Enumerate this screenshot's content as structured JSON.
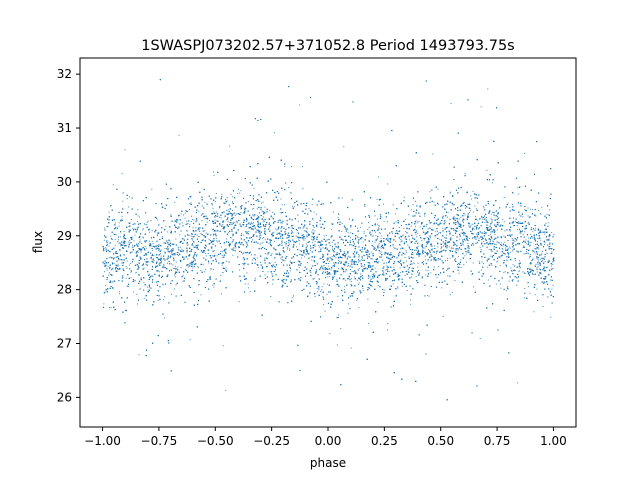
{
  "chart_data": {
    "type": "scatter",
    "title": "1SWASPJ073202.57+371052.8 Period 1493793.75s",
    "xlabel": "phase",
    "ylabel": "flux",
    "xlim": [
      -1.1,
      1.1
    ],
    "ylim": [
      25.45,
      32.3
    ],
    "xticks": [
      -1.0,
      -0.75,
      -0.5,
      -0.25,
      0.0,
      0.25,
      0.5,
      0.75,
      1.0
    ],
    "xtick_labels": [
      "−1.00",
      "−0.75",
      "−0.50",
      "−0.25",
      "0.00",
      "0.25",
      "0.50",
      "0.75",
      "1.00"
    ],
    "yticks": [
      26,
      27,
      28,
      29,
      30,
      31,
      32
    ],
    "ytick_labels": [
      "26",
      "27",
      "28",
      "29",
      "30",
      "31",
      "32"
    ],
    "grid": false,
    "legend": "none",
    "series": [
      {
        "marker_color": "#1f77b4",
        "x_range": [
          -1.0,
          1.0
        ],
        "mean_flux_profile": {
          "phase": [
            -1.0,
            -0.9,
            -0.8,
            -0.7,
            -0.6,
            -0.5,
            -0.4,
            -0.3,
            -0.2,
            -0.1,
            0.0,
            0.1,
            0.2,
            0.3,
            0.4,
            0.5,
            0.6,
            0.7,
            0.8,
            0.9,
            1.0
          ],
          "flux": [
            28.5,
            28.7,
            28.6,
            28.7,
            28.9,
            29.0,
            29.1,
            29.0,
            28.9,
            28.8,
            28.6,
            28.5,
            28.6,
            28.7,
            28.8,
            29.0,
            29.1,
            29.0,
            28.9,
            28.8,
            28.5
          ]
        },
        "flux_range": [
          25.8,
          32.0
        ]
      }
    ]
  }
}
